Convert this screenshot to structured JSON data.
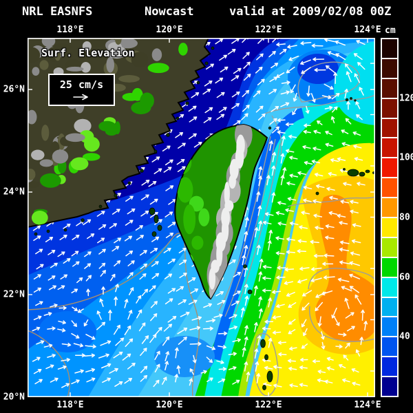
{
  "title": {
    "left": "NRL EASNFS",
    "center": "Nowcast",
    "right": "valid at 2009/02/08 00Z"
  },
  "axes": {
    "lon_labels": [
      "118°E",
      "120°E",
      "122°E",
      "124°E"
    ],
    "lat_labels": [
      "26°N",
      "24°N",
      "22°N",
      "20°N"
    ]
  },
  "legend": {
    "field_label": "Surf. Elevation",
    "vector_scale_label": "25 cm/s"
  },
  "colorbar": {
    "unit": "cm",
    "tick_labels": [
      "120",
      "100",
      "80",
      "60",
      "40"
    ],
    "colors": [
      "#1c0300",
      "#3c0a00",
      "#5a0e00",
      "#7c1000",
      "#a01200",
      "#c81400",
      "#f01800",
      "#ff5200",
      "#ff9800",
      "#ffe800",
      "#a8e800",
      "#00d800",
      "#00e8e8",
      "#00b0f0",
      "#0080f8",
      "#0054f0",
      "#0028e0",
      "#000090"
    ]
  },
  "chart_data": {
    "type": "map",
    "title": "NRL EASNFS Nowcast valid at 2009/02/08 00Z",
    "field": "Surf. Elevation",
    "field_units": "cm",
    "vector_reference": "25 cm/s",
    "colorbar_tick_values_cm": [
      120,
      100,
      80,
      60,
      40
    ],
    "lon_ticks": [
      "118°E",
      "120°E",
      "122°E",
      "124°E"
    ],
    "lat_ticks": [
      "26°N",
      "24°N",
      "22°N",
      "20°N"
    ],
    "features": [
      "China coast",
      "Taiwan",
      "Taiwan Strait",
      "Penghu Islands",
      "Yaeyama Islands",
      "Batanes Islands",
      "Kuroshio high east of Taiwan"
    ],
    "field_summary": {
      "taiwan_strait_cm": "25-50 (blues)",
      "east_of_taiwan_cm": "70-100 (yellow/orange high with eddy)",
      "northeast_corner_cm": "50-65 (cyan with cyclonic eddy)"
    }
  }
}
